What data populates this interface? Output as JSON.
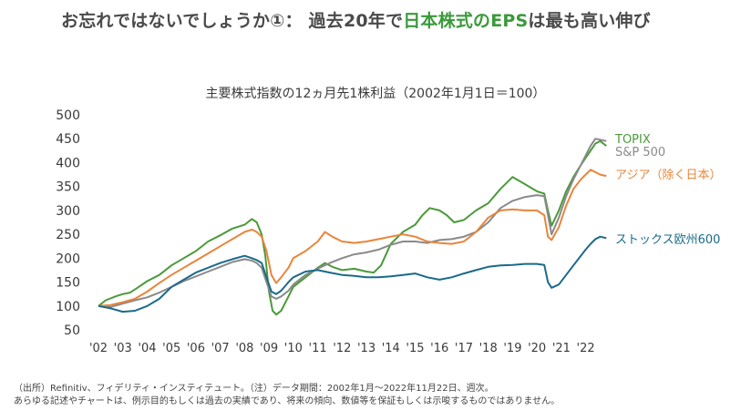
{
  "headline": {
    "prefix": "お忘れではないでしょうか①：  過去20年で",
    "highlight": "日本株式のEPS",
    "suffix": "は最も高い伸び",
    "highlight_color": "#3a9a3a"
  },
  "chart_data": {
    "type": "line",
    "title": "主要株式指数の12ヵ月先1株利益（2002年1月1日＝100）",
    "xlabel": "",
    "ylabel": "",
    "ylim": [
      50,
      500
    ],
    "yticks": [
      50,
      100,
      150,
      200,
      250,
      300,
      350,
      400,
      450,
      500
    ],
    "xlim": [
      2002,
      2022.95
    ],
    "xticks": [
      2002,
      2003,
      2004,
      2005,
      2006,
      2007,
      2008,
      2009,
      2010,
      2011,
      2012,
      2013,
      2014,
      2015,
      2016,
      2017,
      2018,
      2019,
      2020,
      2021,
      2022
    ],
    "xticklabels": [
      "'02",
      "'03",
      "'04",
      "'05",
      "'06",
      "'07",
      "'08",
      "'09",
      "'10",
      "'11",
      "'12",
      "'13",
      "'14",
      "'15",
      "'16",
      "'17",
      "'18",
      "'19",
      "'20",
      "'21",
      "'22"
    ],
    "grid": false,
    "series": [
      {
        "name": "TOPIX",
        "color": "#4a9a3a",
        "x": [
          2002.0,
          2002.3,
          2002.7,
          2003.0,
          2003.3,
          2003.6,
          2004.0,
          2004.5,
          2005.0,
          2005.5,
          2006.0,
          2006.5,
          2007.0,
          2007.5,
          2008.0,
          2008.3,
          2008.5,
          2008.7,
          2008.85,
          2009.0,
          2009.15,
          2009.3,
          2009.5,
          2009.8,
          2010.0,
          2010.5,
          2011.0,
          2011.3,
          2011.6,
          2012.0,
          2012.5,
          2013.0,
          2013.3,
          2013.6,
          2014.0,
          2014.5,
          2015.0,
          2015.3,
          2015.6,
          2016.0,
          2016.3,
          2016.6,
          2017.0,
          2017.5,
          2018.0,
          2018.5,
          2018.8,
          2019.0,
          2019.5,
          2020.0,
          2020.3,
          2020.45,
          2020.6,
          2020.9,
          2021.2,
          2021.5,
          2021.8,
          2022.0,
          2022.2,
          2022.4,
          2022.6,
          2022.85
        ],
        "values": [
          100,
          112,
          120,
          125,
          128,
          138,
          152,
          165,
          185,
          200,
          215,
          235,
          248,
          262,
          270,
          282,
          275,
          250,
          205,
          130,
          90,
          82,
          90,
          120,
          140,
          160,
          180,
          190,
          182,
          175,
          178,
          172,
          170,
          185,
          230,
          255,
          270,
          290,
          305,
          300,
          290,
          275,
          280,
          300,
          315,
          345,
          360,
          370,
          355,
          340,
          335,
          300,
          268,
          300,
          340,
          370,
          395,
          410,
          425,
          440,
          445,
          435
        ]
      },
      {
        "name": "S&P 500",
        "color": "#8a8a8a",
        "x": [
          2002.0,
          2002.5,
          2003.0,
          2003.5,
          2004.0,
          2004.5,
          2005.0,
          2005.5,
          2006.0,
          2006.5,
          2007.0,
          2007.5,
          2008.0,
          2008.3,
          2008.5,
          2008.7,
          2008.9,
          2009.1,
          2009.3,
          2009.5,
          2009.8,
          2010.0,
          2010.5,
          2011.0,
          2011.5,
          2012.0,
          2012.5,
          2013.0,
          2013.5,
          2014.0,
          2014.5,
          2015.0,
          2015.5,
          2016.0,
          2016.5,
          2017.0,
          2017.5,
          2018.0,
          2018.5,
          2019.0,
          2019.5,
          2020.0,
          2020.3,
          2020.45,
          2020.6,
          2020.9,
          2021.2,
          2021.5,
          2021.8,
          2022.0,
          2022.2,
          2022.4,
          2022.6,
          2022.85
        ],
        "values": [
          100,
          98,
          105,
          112,
          118,
          128,
          140,
          152,
          162,
          172,
          182,
          192,
          198,
          195,
          190,
          180,
          150,
          120,
          115,
          120,
          132,
          145,
          165,
          178,
          190,
          200,
          208,
          212,
          218,
          228,
          235,
          235,
          232,
          238,
          240,
          245,
          255,
          275,
          305,
          320,
          328,
          332,
          330,
          290,
          250,
          285,
          330,
          365,
          395,
          415,
          435,
          450,
          448,
          445
        ]
      },
      {
        "name": "アジア（除く日本）",
        "color": "#e8853a",
        "x": [
          2002.0,
          2002.5,
          2003.0,
          2003.5,
          2004.0,
          2004.5,
          2005.0,
          2005.5,
          2006.0,
          2006.5,
          2007.0,
          2007.5,
          2008.0,
          2008.3,
          2008.5,
          2008.7,
          2008.9,
          2009.1,
          2009.3,
          2009.5,
          2009.8,
          2010.0,
          2010.5,
          2011.0,
          2011.3,
          2011.6,
          2012.0,
          2012.5,
          2013.0,
          2013.5,
          2014.0,
          2014.5,
          2015.0,
          2015.5,
          2016.0,
          2016.5,
          2017.0,
          2017.5,
          2018.0,
          2018.5,
          2019.0,
          2019.5,
          2020.0,
          2020.3,
          2020.45,
          2020.6,
          2020.9,
          2021.2,
          2021.5,
          2021.8,
          2022.0,
          2022.2,
          2022.4,
          2022.6,
          2022.85
        ],
        "values": [
          100,
          102,
          108,
          115,
          130,
          148,
          165,
          180,
          195,
          210,
          225,
          240,
          255,
          260,
          255,
          245,
          215,
          165,
          148,
          160,
          180,
          200,
          215,
          235,
          255,
          245,
          235,
          232,
          235,
          240,
          245,
          250,
          245,
          235,
          232,
          230,
          235,
          255,
          285,
          300,
          302,
          300,
          300,
          290,
          245,
          238,
          265,
          310,
          345,
          365,
          375,
          385,
          380,
          375,
          372
        ]
      },
      {
        "name": "ストックス欧州600",
        "color": "#1a6a8a",
        "x": [
          2002.0,
          2002.5,
          2003.0,
          2003.5,
          2004.0,
          2004.5,
          2005.0,
          2005.5,
          2006.0,
          2006.5,
          2007.0,
          2007.5,
          2008.0,
          2008.3,
          2008.5,
          2008.7,
          2008.9,
          2009.1,
          2009.3,
          2009.5,
          2009.8,
          2010.0,
          2010.5,
          2011.0,
          2011.5,
          2012.0,
          2012.5,
          2013.0,
          2013.5,
          2014.0,
          2014.5,
          2015.0,
          2015.5,
          2016.0,
          2016.5,
          2017.0,
          2017.5,
          2018.0,
          2018.5,
          2019.0,
          2019.5,
          2020.0,
          2020.3,
          2020.45,
          2020.6,
          2020.9,
          2021.2,
          2021.5,
          2021.8,
          2022.0,
          2022.2,
          2022.4,
          2022.6,
          2022.85
        ],
        "values": [
          100,
          95,
          88,
          90,
          100,
          115,
          140,
          155,
          170,
          180,
          190,
          198,
          205,
          200,
          196,
          190,
          160,
          130,
          125,
          132,
          150,
          160,
          172,
          175,
          170,
          165,
          163,
          160,
          160,
          162,
          165,
          168,
          160,
          155,
          160,
          168,
          175,
          182,
          185,
          186,
          188,
          188,
          186,
          150,
          138,
          145,
          165,
          185,
          205,
          218,
          230,
          240,
          245,
          242
        ]
      }
    ]
  },
  "footnotes": [
    "（出所）Refinitiv、フィデリティ・インスティテュート。（注）データ期間：2002年1月～2022年11月22日、週次。",
    "あらゆる記述やチャートは、例示目的もしくは過去の実績であり、将来の傾向、数値等を保証もしくは示唆するものではありません。"
  ]
}
